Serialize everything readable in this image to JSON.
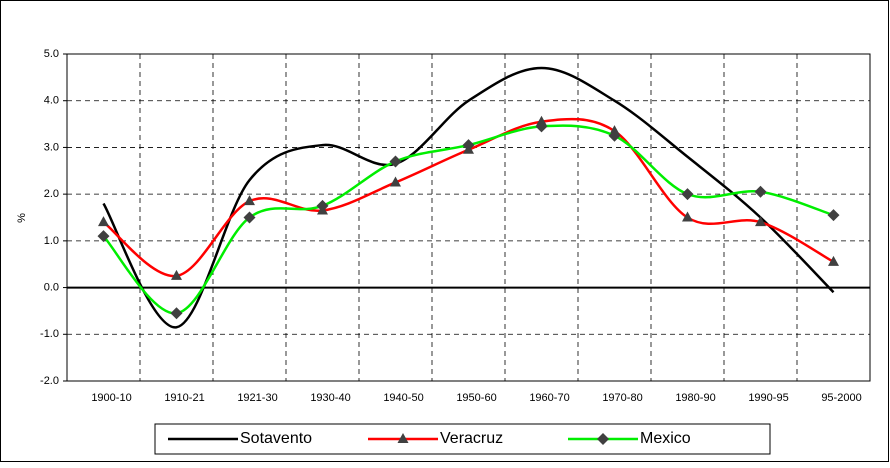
{
  "chart_data": {
    "type": "line",
    "y_label": "%",
    "categories": [
      "1900-10",
      "1910-21",
      "1921-30",
      "1930-40",
      "1940-50",
      "1950-60",
      "1960-70",
      "1970-80",
      "1980-90",
      "1990-95",
      "95-2000"
    ],
    "series": [
      {
        "name": "Sotavento",
        "color": "#000000",
        "marker": "none",
        "values": [
          1.8,
          -0.85,
          2.3,
          3.05,
          2.65,
          4.0,
          4.7,
          4.0,
          2.8,
          1.5,
          -0.1
        ]
      },
      {
        "name": "Veracruz",
        "color": "#ff0000",
        "marker": "triangle",
        "values": [
          1.4,
          0.25,
          1.85,
          1.65,
          2.25,
          2.95,
          3.55,
          3.35,
          1.5,
          1.4,
          0.55
        ]
      },
      {
        "name": "Mexico",
        "color": "#00ee00",
        "marker": "diamond",
        "values": [
          1.1,
          -0.55,
          1.5,
          1.75,
          2.7,
          3.05,
          3.45,
          3.25,
          2.0,
          2.05,
          1.55
        ]
      }
    ],
    "ylim": [
      -2,
      5
    ],
    "yticks": [
      {
        "value": -2,
        "label": "-2.0"
      },
      {
        "value": -1,
        "label": "-1.0"
      },
      {
        "value": 0,
        "label": "0.0"
      },
      {
        "value": 1,
        "label": "1.0"
      },
      {
        "value": 2,
        "label": "2.0"
      },
      {
        "value": 3,
        "label": "3.0"
      },
      {
        "value": 4,
        "label": "4.0"
      },
      {
        "value": 5,
        "label": "5.0"
      }
    ],
    "grid": true,
    "legend": "bottom"
  }
}
